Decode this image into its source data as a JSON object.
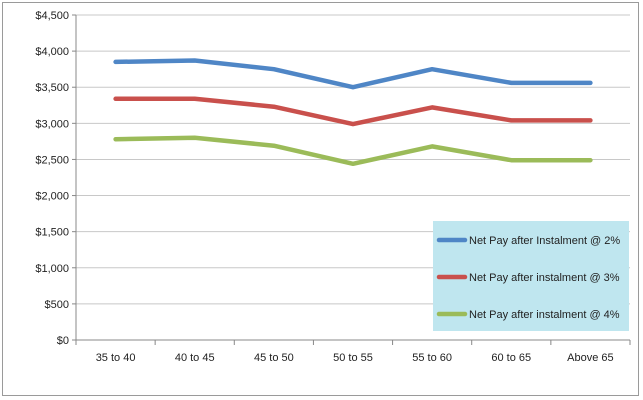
{
  "chart_data": {
    "type": "line",
    "title": "",
    "xlabel": "",
    "ylabel": "",
    "categories": [
      "35 to 40",
      "40 to 45",
      "45 to 50",
      "50 to 55",
      "55 to 60",
      "60 to 65",
      "Above 65"
    ],
    "ylim": [
      0,
      4500
    ],
    "yticks": [
      0,
      500,
      1000,
      1500,
      2000,
      2500,
      3000,
      3500,
      4000,
      4500
    ],
    "ytick_labels": [
      "$0",
      "$500",
      "$1,000",
      "$1,500",
      "$2,000",
      "$2,500",
      "$3,000",
      "$3,500",
      "$4,000",
      "$4,500"
    ],
    "grid": "horizontal",
    "legend_position": "bottom-right",
    "legend_background": "#bfe6ef",
    "series": [
      {
        "name": "Net Pay after Instalment @ 2%",
        "color": "#4f86c6",
        "values": [
          3850,
          3870,
          3750,
          3500,
          3750,
          3560,
          3560
        ]
      },
      {
        "name": "Net Pay after instalment @ 3%",
        "color": "#c9504c",
        "values": [
          3340,
          3340,
          3230,
          2990,
          3220,
          3040,
          3040
        ]
      },
      {
        "name": "Net Pay after instalment @ 4%",
        "color": "#9bbb59",
        "values": [
          2780,
          2800,
          2690,
          2440,
          2680,
          2490,
          2490
        ]
      }
    ]
  }
}
